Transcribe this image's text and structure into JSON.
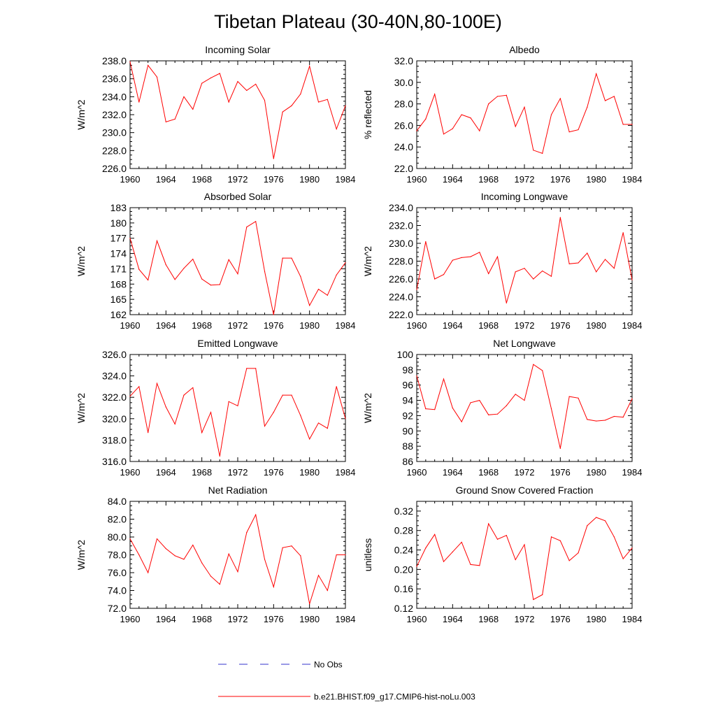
{
  "figure_title": "Tibetan Plateau (30-40N,80-100E)",
  "colors": {
    "model_line": "#ff0000",
    "obs_line": "#3333cc",
    "axis": "#000000",
    "background": "#ffffff"
  },
  "legend": {
    "placement": "bottom-center",
    "entries": [
      {
        "label": "No Obs",
        "style": "dashed",
        "color": "#3333cc"
      },
      {
        "label": "b.e21.BHIST.f09_g17.CMIP6-hist-noLu.003",
        "style": "solid",
        "color": "#ff0000"
      }
    ]
  },
  "chart_data": [
    {
      "type": "line",
      "title": "Incoming Solar",
      "ylabel": "W/m^2",
      "xlim": [
        1960,
        1984
      ],
      "ylim": [
        226,
        238
      ],
      "xticks": [
        1960,
        1964,
        1968,
        1972,
        1976,
        1980,
        1984
      ],
      "xtick_labels": [
        "1960",
        "1964",
        "1968",
        "1972",
        "1976",
        "1980",
        "1984"
      ],
      "yticks": [
        226,
        228,
        230,
        232,
        234,
        236,
        238
      ],
      "ytick_labels": [
        "226.0",
        "228.0",
        "230.0",
        "232.0",
        "234.0",
        "236.0",
        "238.0"
      ],
      "grid": false,
      "x": [
        1960,
        1961,
        1962,
        1963,
        1964,
        1965,
        1966,
        1967,
        1968,
        1969,
        1970,
        1971,
        1972,
        1973,
        1974,
        1975,
        1976,
        1977,
        1978,
        1979,
        1980,
        1981,
        1982,
        1983,
        1984
      ],
      "series": [
        {
          "name": "b.e21.BHIST.f09_g17.CMIP6-hist-noLu.003",
          "values": [
            237.9,
            233.4,
            237.5,
            236.2,
            231.2,
            231.5,
            234.0,
            232.6,
            235.5,
            236.1,
            236.6,
            233.4,
            235.7,
            234.7,
            235.4,
            233.6,
            227.1,
            232.3,
            233.0,
            234.3,
            237.4,
            233.4,
            233.7,
            230.4,
            233.0
          ]
        }
      ]
    },
    {
      "type": "line",
      "title": "Albedo",
      "ylabel": "% reflected",
      "xlim": [
        1960,
        1984
      ],
      "ylim": [
        22,
        32
      ],
      "xticks": [
        1960,
        1964,
        1968,
        1972,
        1976,
        1980,
        1984
      ],
      "xtick_labels": [
        "1960",
        "1964",
        "1968",
        "1972",
        "1976",
        "1980",
        "1984"
      ],
      "yticks": [
        22,
        24,
        26,
        28,
        30,
        32
      ],
      "ytick_labels": [
        "22.0",
        "24.0",
        "26.0",
        "28.0",
        "30.0",
        "32.0"
      ],
      "grid": false,
      "x": [
        1960,
        1961,
        1962,
        1963,
        1964,
        1965,
        1966,
        1967,
        1968,
        1969,
        1970,
        1971,
        1972,
        1973,
        1974,
        1975,
        1976,
        1977,
        1978,
        1979,
        1980,
        1981,
        1982,
        1983,
        1984
      ],
      "series": [
        {
          "name": "b.e21.BHIST.f09_g17.CMIP6-hist-noLu.003",
          "values": [
            25.5,
            26.6,
            28.9,
            25.2,
            25.7,
            27.0,
            26.7,
            25.5,
            28.0,
            28.7,
            28.8,
            25.9,
            27.7,
            23.7,
            23.4,
            27.0,
            28.5,
            25.4,
            25.6,
            27.7,
            30.8,
            28.3,
            28.7,
            26.1,
            26.1
          ]
        }
      ]
    },
    {
      "type": "line",
      "title": "Absorbed Solar",
      "ylabel": "W/m^2",
      "xlim": [
        1960,
        1984
      ],
      "ylim": [
        162,
        183
      ],
      "xticks": [
        1960,
        1964,
        1968,
        1972,
        1976,
        1980,
        1984
      ],
      "xtick_labels": [
        "1960",
        "1964",
        "1968",
        "1972",
        "1976",
        "1980",
        "1984"
      ],
      "yticks": [
        162,
        165,
        168,
        171,
        174,
        177,
        180,
        183
      ],
      "ytick_labels": [
        "162",
        "165",
        "168",
        "171",
        "174",
        "177",
        "180",
        "183"
      ],
      "grid": false,
      "x": [
        1960,
        1961,
        1962,
        1963,
        1964,
        1965,
        1966,
        1967,
        1968,
        1969,
        1970,
        1971,
        1972,
        1973,
        1974,
        1975,
        1976,
        1977,
        1978,
        1979,
        1980,
        1981,
        1982,
        1983,
        1984
      ],
      "series": [
        {
          "name": "b.e21.BHIST.f09_g17.CMIP6-hist-noLu.003",
          "values": [
            177.0,
            170.9,
            168.8,
            176.5,
            171.8,
            168.9,
            171.1,
            172.9,
            169.0,
            167.8,
            167.9,
            172.8,
            170.0,
            179.2,
            180.3,
            170.5,
            162.0,
            173.1,
            173.1,
            169.5,
            163.8,
            167.0,
            165.8,
            169.8,
            172.2
          ]
        }
      ]
    },
    {
      "type": "line",
      "title": "Incoming Longwave",
      "ylabel": "W/m^2",
      "xlim": [
        1960,
        1984
      ],
      "ylim": [
        222,
        234
      ],
      "xticks": [
        1960,
        1964,
        1968,
        1972,
        1976,
        1980,
        1984
      ],
      "xtick_labels": [
        "1960",
        "1964",
        "1968",
        "1972",
        "1976",
        "1980",
        "1984"
      ],
      "yticks": [
        222,
        224,
        226,
        228,
        230,
        232,
        234
      ],
      "ytick_labels": [
        "222.0",
        "224.0",
        "226.0",
        "228.0",
        "230.0",
        "232.0",
        "234.0"
      ],
      "grid": false,
      "x": [
        1960,
        1961,
        1962,
        1963,
        1964,
        1965,
        1966,
        1967,
        1968,
        1969,
        1970,
        1971,
        1972,
        1973,
        1974,
        1975,
        1976,
        1977,
        1978,
        1979,
        1980,
        1981,
        1982,
        1983,
        1984
      ],
      "series": [
        {
          "name": "b.e21.BHIST.f09_g17.CMIP6-hist-noLu.003",
          "values": [
            224.8,
            230.2,
            226.0,
            226.5,
            228.1,
            228.4,
            228.5,
            229.0,
            226.6,
            228.5,
            223.3,
            226.8,
            227.2,
            226.0,
            226.9,
            226.3,
            232.9,
            227.7,
            227.8,
            228.9,
            226.8,
            228.2,
            227.2,
            231.2,
            225.9
          ]
        }
      ]
    },
    {
      "type": "line",
      "title": "Emitted Longwave",
      "ylabel": "W/m^2",
      "xlim": [
        1960,
        1984
      ],
      "ylim": [
        316,
        326
      ],
      "xticks": [
        1960,
        1964,
        1968,
        1972,
        1976,
        1980,
        1984
      ],
      "xtick_labels": [
        "1960",
        "1964",
        "1968",
        "1972",
        "1976",
        "1980",
        "1984"
      ],
      "yticks": [
        316,
        318,
        320,
        322,
        324,
        326
      ],
      "ytick_labels": [
        "316.0",
        "318.0",
        "320.0",
        "322.0",
        "324.0",
        "326.0"
      ],
      "grid": false,
      "x": [
        1960,
        1961,
        1962,
        1963,
        1964,
        1965,
        1966,
        1967,
        1968,
        1969,
        1970,
        1971,
        1972,
        1973,
        1974,
        1975,
        1976,
        1977,
        1978,
        1979,
        1980,
        1981,
        1982,
        1983,
        1984
      ],
      "series": [
        {
          "name": "b.e21.BHIST.f09_g17.CMIP6-hist-noLu.003",
          "values": [
            322.1,
            323.0,
            318.7,
            323.3,
            321.1,
            319.5,
            322.2,
            322.9,
            318.7,
            320.6,
            316.5,
            321.6,
            321.2,
            324.7,
            324.7,
            319.3,
            320.6,
            322.2,
            322.2,
            320.3,
            318.1,
            319.6,
            319.1,
            323.0,
            320.0
          ]
        }
      ]
    },
    {
      "type": "line",
      "title": "Net Longwave",
      "ylabel": "W/m^2",
      "xlim": [
        1960,
        1984
      ],
      "ylim": [
        86,
        100
      ],
      "xticks": [
        1960,
        1964,
        1968,
        1972,
        1976,
        1980,
        1984
      ],
      "xtick_labels": [
        "1960",
        "1964",
        "1968",
        "1972",
        "1976",
        "1980",
        "1984"
      ],
      "yticks": [
        86,
        88,
        90,
        92,
        94,
        96,
        98,
        100
      ],
      "ytick_labels": [
        "86",
        "88",
        "90",
        "92",
        "94",
        "96",
        "98",
        "100"
      ],
      "grid": false,
      "x": [
        1960,
        1961,
        1962,
        1963,
        1964,
        1965,
        1966,
        1967,
        1968,
        1969,
        1970,
        1971,
        1972,
        1973,
        1974,
        1975,
        1976,
        1977,
        1978,
        1979,
        1980,
        1981,
        1982,
        1983,
        1984
      ],
      "series": [
        {
          "name": "b.e21.BHIST.f09_g17.CMIP6-hist-noLu.003",
          "values": [
            97.2,
            92.9,
            92.8,
            96.8,
            93.0,
            91.2,
            93.7,
            94.0,
            92.1,
            92.2,
            93.3,
            94.8,
            94.0,
            98.7,
            97.9,
            92.9,
            87.7,
            94.5,
            94.3,
            91.5,
            91.3,
            91.4,
            91.9,
            91.8,
            94.2
          ]
        }
      ]
    },
    {
      "type": "line",
      "title": "Net Radiation",
      "ylabel": "W/m^2",
      "xlim": [
        1960,
        1984
      ],
      "ylim": [
        72,
        84
      ],
      "xticks": [
        1960,
        1964,
        1968,
        1972,
        1976,
        1980,
        1984
      ],
      "xtick_labels": [
        "1960",
        "1964",
        "1968",
        "1972",
        "1976",
        "1980",
        "1984"
      ],
      "yticks": [
        72,
        74,
        76,
        78,
        80,
        82,
        84
      ],
      "ytick_labels": [
        "72.0",
        "74.0",
        "76.0",
        "78.0",
        "80.0",
        "82.0",
        "84.0"
      ],
      "grid": false,
      "x": [
        1960,
        1961,
        1962,
        1963,
        1964,
        1965,
        1966,
        1967,
        1968,
        1969,
        1970,
        1971,
        1972,
        1973,
        1974,
        1975,
        1976,
        1977,
        1978,
        1979,
        1980,
        1981,
        1982,
        1983,
        1984
      ],
      "series": [
        {
          "name": "b.e21.BHIST.f09_g17.CMIP6-hist-noLu.003",
          "values": [
            79.8,
            78.0,
            76.0,
            79.8,
            78.7,
            77.9,
            77.5,
            79.1,
            77.1,
            75.6,
            74.7,
            78.1,
            76.1,
            80.5,
            82.5,
            77.5,
            74.4,
            78.8,
            79.0,
            77.9,
            72.5,
            75.7,
            74.0,
            78.0,
            78.0
          ]
        }
      ]
    },
    {
      "type": "line",
      "title": "Ground Snow Covered Fraction",
      "ylabel": "unitless",
      "xlim": [
        1960,
        1984
      ],
      "ylim": [
        0.12,
        0.34
      ],
      "xticks": [
        1960,
        1964,
        1968,
        1972,
        1976,
        1980,
        1984
      ],
      "xtick_labels": [
        "1960",
        "1964",
        "1968",
        "1972",
        "1976",
        "1980",
        "1984"
      ],
      "yticks": [
        0.12,
        0.16,
        0.2,
        0.24,
        0.28,
        0.32
      ],
      "ytick_labels": [
        "0.12",
        "0.16",
        "0.20",
        "0.24",
        "0.28",
        "0.32"
      ],
      "grid": false,
      "x": [
        1960,
        1961,
        1962,
        1963,
        1964,
        1965,
        1966,
        1967,
        1968,
        1969,
        1970,
        1971,
        1972,
        1973,
        1974,
        1975,
        1976,
        1977,
        1978,
        1979,
        1980,
        1981,
        1982,
        1983,
        1984
      ],
      "series": [
        {
          "name": "b.e21.BHIST.f09_g17.CMIP6-hist-noLu.003",
          "values": [
            0.206,
            0.244,
            0.272,
            0.216,
            0.236,
            0.256,
            0.21,
            0.208,
            0.294,
            0.262,
            0.27,
            0.22,
            0.251,
            0.138,
            0.148,
            0.267,
            0.259,
            0.218,
            0.234,
            0.29,
            0.307,
            0.3,
            0.267,
            0.222,
            0.244
          ]
        }
      ]
    }
  ]
}
